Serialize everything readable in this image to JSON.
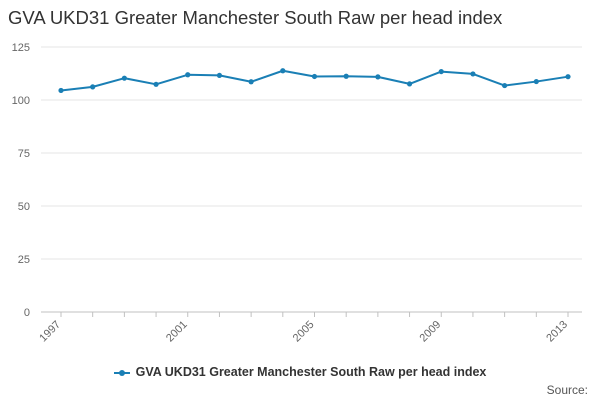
{
  "colors": {
    "series": "#1a7fb5",
    "grid": "#e6e6e6",
    "axis": "#c0c0c0",
    "text": "#333333",
    "tick": "#666666"
  },
  "source_label": "Source:",
  "chart_data": {
    "type": "line",
    "title": "GVA UKD31 Greater Manchester South Raw per head index",
    "xlabel": "",
    "ylabel": "",
    "x": [
      1997,
      1998,
      1999,
      2000,
      2001,
      2002,
      2003,
      2004,
      2005,
      2006,
      2007,
      2008,
      2009,
      2010,
      2011,
      2012,
      2013
    ],
    "series": [
      {
        "name": "GVA UKD31 Greater Manchester South Raw per head index",
        "values": [
          104.5,
          106.2,
          110.3,
          107.4,
          111.9,
          111.6,
          108.6,
          113.8,
          111.1,
          111.2,
          110.9,
          107.6,
          113.4,
          112.3,
          106.8,
          108.7,
          111.0
        ]
      }
    ],
    "xlim": [
      1997,
      2013
    ],
    "ylim": [
      0,
      125
    ],
    "yticks": [
      0,
      25,
      50,
      75,
      100,
      125
    ],
    "xticks": [
      1997,
      2001,
      2005,
      2009,
      2013
    ],
    "legend_position": "bottom",
    "grid": true
  }
}
